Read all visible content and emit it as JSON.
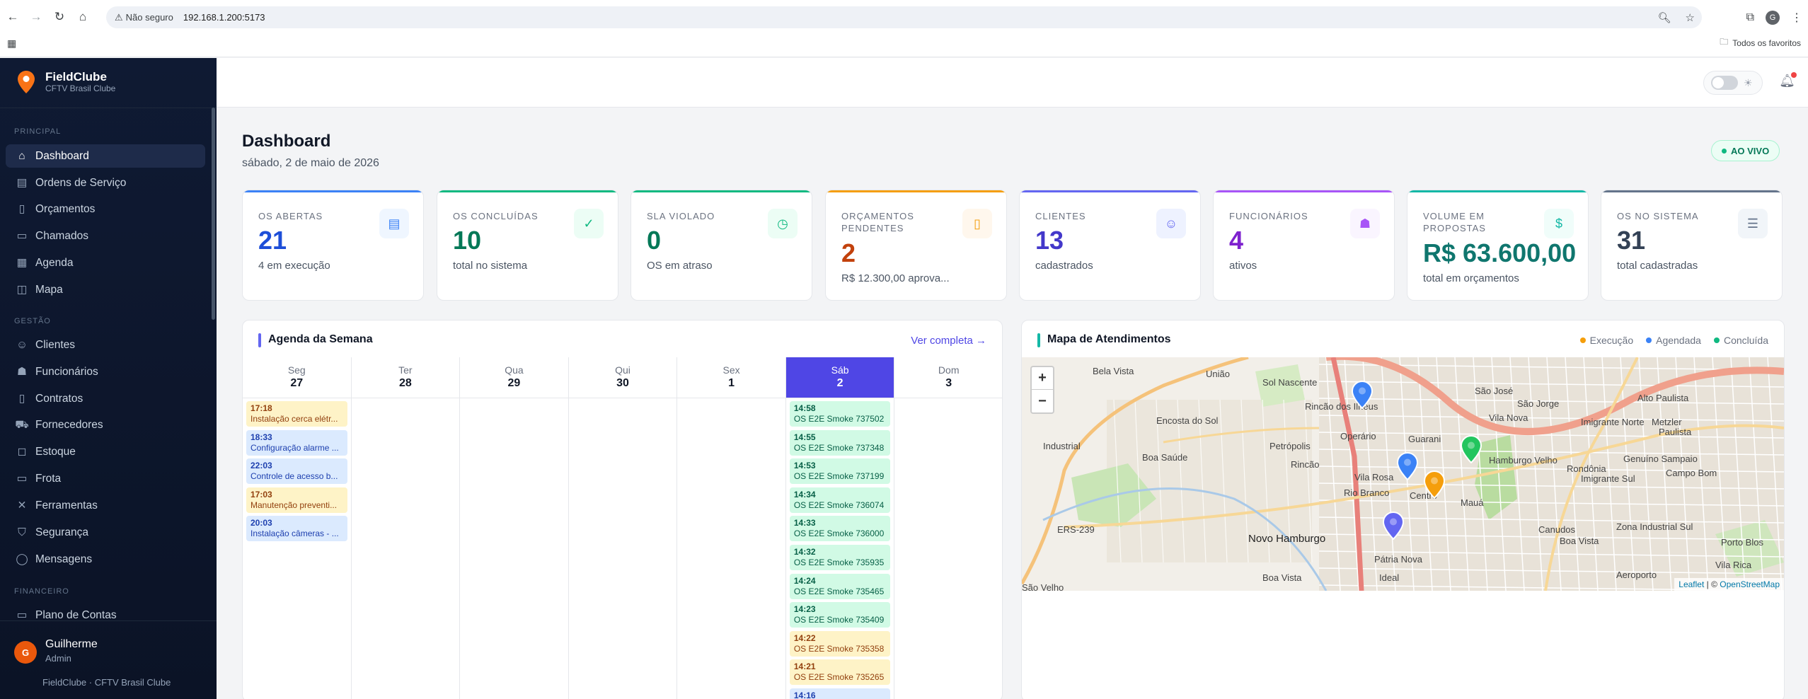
{
  "browser": {
    "security_label": "Não seguro",
    "url": "192.168.1.200:5173",
    "favorites_label": "Todos os favoritos",
    "profile_initial": "G"
  },
  "sidebar": {
    "brand_name": "FieldClube",
    "brand_sub": "CFTV Brasil Clube",
    "sections": {
      "principal": "PRINCIPAL",
      "gestao": "GESTÃO",
      "financeiro": "FINANCEIRO"
    },
    "items": [
      {
        "label": "Dashboard",
        "icon": "home-icon"
      },
      {
        "label": "Ordens de Serviço",
        "icon": "clipboard-icon"
      },
      {
        "label": "Orçamentos",
        "icon": "document-icon"
      },
      {
        "label": "Chamados",
        "icon": "ticket-icon"
      },
      {
        "label": "Agenda",
        "icon": "calendar-icon"
      },
      {
        "label": "Mapa",
        "icon": "map-icon"
      },
      {
        "label": "Clientes",
        "icon": "users-icon"
      },
      {
        "label": "Funcionários",
        "icon": "badge-icon"
      },
      {
        "label": "Contratos",
        "icon": "contract-icon"
      },
      {
        "label": "Fornecedores",
        "icon": "truck-icon"
      },
      {
        "label": "Estoque",
        "icon": "box-icon"
      },
      {
        "label": "Frota",
        "icon": "car-icon"
      },
      {
        "label": "Ferramentas",
        "icon": "tools-icon"
      },
      {
        "label": "Segurança",
        "icon": "shield-icon"
      },
      {
        "label": "Mensagens",
        "icon": "chat-icon"
      },
      {
        "label": "Plano de Contas",
        "icon": "wallet-icon"
      }
    ],
    "user": {
      "initial": "G",
      "name": "Guilherme",
      "role": "Admin"
    },
    "footer": "FieldClube · CFTV Brasil Clube"
  },
  "header": {
    "title": "Dashboard",
    "date": "sábado, 2 de maio de 2026",
    "live_label": "AO VIVO"
  },
  "cards": [
    {
      "label": "OS ABERTAS",
      "value": "21",
      "foot": "4 em execução",
      "color": "#1d4ed8",
      "bar": "#3b82f6"
    },
    {
      "label": "OS CONCLUÍDAS",
      "value": "10",
      "foot": "total no sistema",
      "color": "#047857",
      "bar": "#10b981"
    },
    {
      "label": "SLA VIOLADO",
      "value": "0",
      "foot": "OS em atraso",
      "color": "#047857",
      "bar": "#10b981"
    },
    {
      "label": "ORÇAMENTOS PENDENTES",
      "value": "2",
      "foot": "R$ 12.300,00 aprova...",
      "color": "#c2410c",
      "bar": "#f59e0b"
    },
    {
      "label": "CLIENTES",
      "value": "13",
      "foot": "cadastrados",
      "color": "#4338ca",
      "bar": "#6366f1"
    },
    {
      "label": "FUNCIONÁRIOS",
      "value": "4",
      "foot": "ativos",
      "color": "#7e22ce",
      "bar": "#a855f7"
    },
    {
      "label": "VOLUME EM PROPOSTAS",
      "value": "R$ 63.600,00",
      "foot": "total em orçamentos",
      "color": "#0f766e",
      "bar": "#14b8a6"
    },
    {
      "label": "OS NO SISTEMA",
      "value": "31",
      "foot": "total cadastradas",
      "color": "#334155",
      "bar": "#64748b"
    }
  ],
  "agenda": {
    "title": "Agenda da Semana",
    "link": "Ver completa →",
    "days": [
      {
        "name": "Seg",
        "num": "27",
        "events": [
          {
            "time": "17:18",
            "text": "Instalação cerca elétr...",
            "type": "yellow"
          },
          {
            "time": "18:33",
            "text": "Configuração alarme ...",
            "type": "blue"
          },
          {
            "time": "22:03",
            "text": "Controle de acesso b...",
            "type": "blue"
          },
          {
            "time": "17:03",
            "text": "Manutenção preventi...",
            "type": "yellow"
          },
          {
            "time": "20:03",
            "text": "Instalação câmeras - ...",
            "type": "blue"
          }
        ]
      },
      {
        "name": "Ter",
        "num": "28",
        "events": []
      },
      {
        "name": "Qua",
        "num": "29",
        "events": []
      },
      {
        "name": "Qui",
        "num": "30",
        "events": []
      },
      {
        "name": "Sex",
        "num": "1",
        "events": []
      },
      {
        "name": "Sáb",
        "num": "2",
        "today": true,
        "events": [
          {
            "time": "14:58",
            "text": "OS E2E Smoke 737502",
            "type": "green"
          },
          {
            "time": "14:55",
            "text": "OS E2E Smoke 737348",
            "type": "green"
          },
          {
            "time": "14:53",
            "text": "OS E2E Smoke 737199",
            "type": "green"
          },
          {
            "time": "14:34",
            "text": "OS E2E Smoke 736074",
            "type": "green"
          },
          {
            "time": "14:33",
            "text": "OS E2E Smoke 736000",
            "type": "green"
          },
          {
            "time": "14:32",
            "text": "OS E2E Smoke 735935",
            "type": "green"
          },
          {
            "time": "14:24",
            "text": "OS E2E Smoke 735465",
            "type": "green"
          },
          {
            "time": "14:23",
            "text": "OS E2E Smoke 735409",
            "type": "green"
          },
          {
            "time": "14:22",
            "text": "OS E2E Smoke 735358",
            "type": "yellow"
          },
          {
            "time": "14:21",
            "text": "OS E2E Smoke 735265",
            "type": "yellow"
          },
          {
            "time": "14:16",
            "text": "",
            "type": "blue"
          }
        ]
      },
      {
        "name": "Dom",
        "num": "3",
        "events": []
      }
    ]
  },
  "map_panel": {
    "title": "Mapa de Atendimentos",
    "legend": [
      {
        "label": "Execução",
        "color": "#f59e0b"
      },
      {
        "label": "Agendada",
        "color": "#3b82f6"
      },
      {
        "label": "Concluída",
        "color": "#10b981"
      }
    ],
    "zoom_in": "+",
    "zoom_out": "−",
    "attribution_leaflet": "Leaflet",
    "attribution_sep": " | © ",
    "attribution_osm": "OpenStreetMap",
    "places": [
      {
        "name": "Bela Vista"
      },
      {
        "name": "União"
      },
      {
        "name": "Sol Nascente"
      },
      {
        "name": "Rincão dos Ilhéus"
      },
      {
        "name": "São José"
      },
      {
        "name": "São Jorge"
      },
      {
        "name": "Vila Nova"
      },
      {
        "name": "Alto Paulista"
      },
      {
        "name": "Encosta do Sol"
      },
      {
        "name": "Imigrante Norte"
      },
      {
        "name": "Metzler"
      },
      {
        "name": "Paulista"
      },
      {
        "name": "Operário"
      },
      {
        "name": "Guarani"
      },
      {
        "name": "Industrial"
      },
      {
        "name": "Petrópolis"
      },
      {
        "name": "Boa Saúde"
      },
      {
        "name": "Hamburgo Velho"
      },
      {
        "name": "Genuíno Sampaio"
      },
      {
        "name": "Rondônia"
      },
      {
        "name": "Vila Rosa"
      },
      {
        "name": "Imigrante Sul"
      },
      {
        "name": "Campo Bom"
      },
      {
        "name": "Rincão"
      },
      {
        "name": "Centro"
      },
      {
        "name": "Rio Branco"
      },
      {
        "name": "Mauá"
      },
      {
        "name": "ERS-239"
      },
      {
        "name": "Canudos"
      },
      {
        "name": "Zona Industrial Sul"
      },
      {
        "name": "Novo Hamburgo"
      },
      {
        "name": "Boa Vista"
      },
      {
        "name": "Porto Blos"
      },
      {
        "name": "Pátria Nova"
      },
      {
        "name": "Vila Rica"
      },
      {
        "name": "Ideal"
      },
      {
        "name": "Aeroporto"
      },
      {
        "name": "Boa Vista"
      },
      {
        "name": "São Velho"
      }
    ],
    "markers": [
      {
        "status": "Agendada",
        "color": "#3b82f6"
      },
      {
        "status": "Agendada",
        "color": "#3b82f6"
      },
      {
        "status": "Execução",
        "color": "#f59e0b"
      },
      {
        "status": "Concluída",
        "color": "#22c55e"
      },
      {
        "status": "Agendada",
        "color": "#6366f1"
      }
    ]
  }
}
